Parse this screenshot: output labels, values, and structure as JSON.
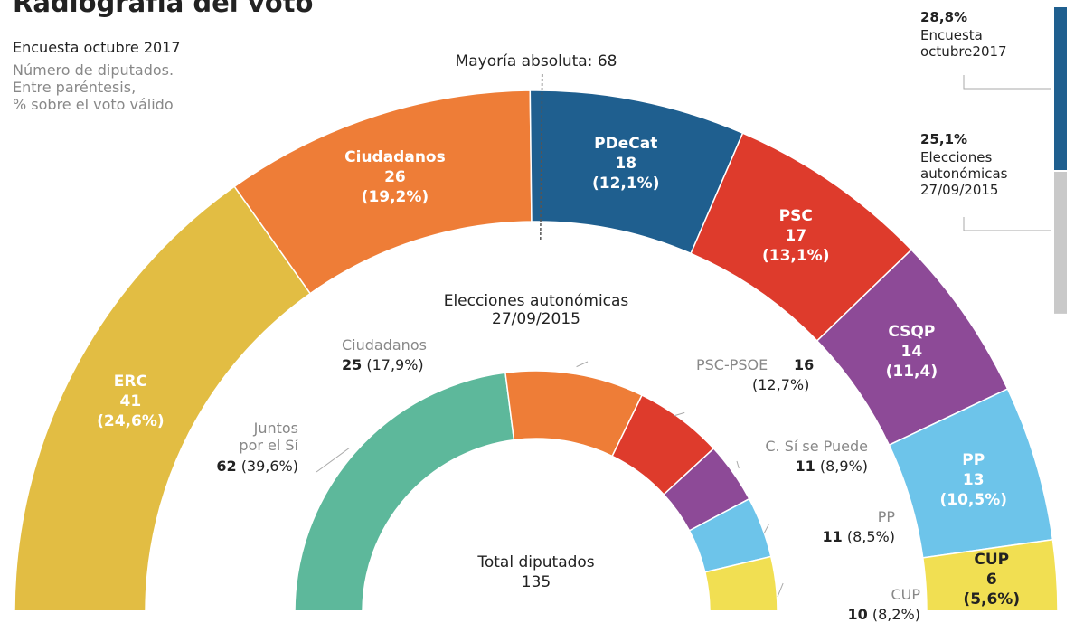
{
  "title": "Radiografía del voto",
  "subtitle": "Encuesta octubre 2017",
  "note": "Número de diputados.\nEntre paréntesis,\n% sobre el voto válido",
  "chart_data": [
    {
      "type": "half-donut",
      "categories": [
        "ERC",
        "Ciudadanos",
        "PDeCat",
        "PSC",
        "CSQP",
        "PP",
        "CUP"
      ],
      "values": [
        41,
        26,
        18,
        17,
        14,
        13,
        6
      ],
      "value_labels": [
        "(24,6%)",
        "(19,2%)",
        "(12,1%)",
        "(13,1%)",
        "(11,4)",
        "(10,5%)",
        "(5,6%)"
      ],
      "colors": [
        "#e2bd43",
        "#ee7d37",
        "#1f5f8f",
        "#de3b2c",
        "#8d4a97",
        "#6dc4ea",
        "#f1df52"
      ],
      "majority": 68,
      "majority_label": "Mayoría absoluta: 68"
    },
    {
      "type": "half-donut",
      "title": "Elecciones autonómicas\n27/09/2015",
      "categories": [
        "Juntos\npor el Sí",
        "Ciudadanos",
        "PSC-PSOE",
        "C. Sí se Puede",
        "PP",
        "CUP"
      ],
      "values": [
        62,
        25,
        16,
        11,
        11,
        10
      ],
      "value_labels": [
        "(39,6%)",
        "(17,9%)",
        "(12,7%)",
        "(8,9%)",
        "(8,5%)",
        "(8,2%)"
      ],
      "colors": [
        "#5db89b",
        "#ee7d37",
        "#de3b2c",
        "#8d4a97",
        "#6dc4ea",
        "#f1df52"
      ],
      "total_label": "Total diputados",
      "total": 135
    },
    {
      "type": "stacked-bar",
      "categories": [
        "Encuesta\noctubre2017",
        "Elecciones\nautonómicas\n27/09/2015"
      ],
      "values": [
        28.8,
        25.1
      ],
      "value_labels": [
        "28,8%",
        "25,1%"
      ],
      "colors": [
        "#1f5f8f",
        "#c9c9c9"
      ]
    }
  ]
}
